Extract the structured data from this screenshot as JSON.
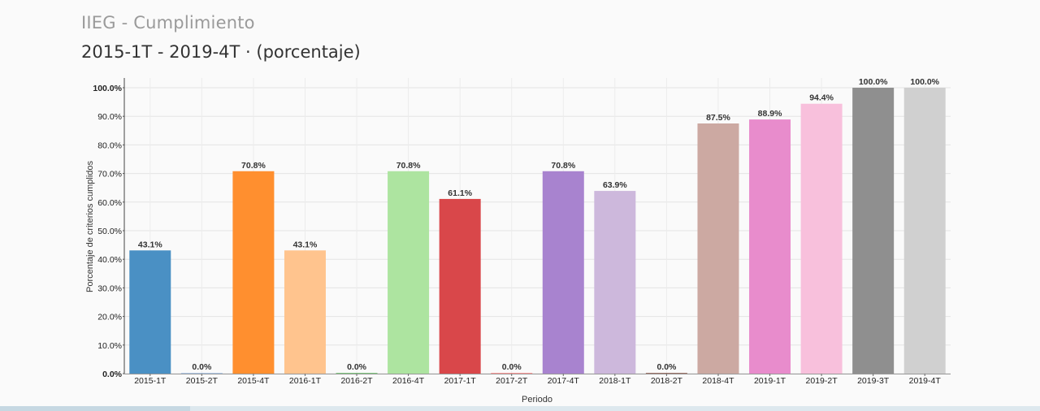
{
  "header": {
    "title": "IIEG - Cumplimiento",
    "subtitle": "2015-1T - 2019-4T · (porcentaje)"
  },
  "chart_data": {
    "type": "bar",
    "title": "IIEG - Cumplimiento",
    "subtitle": "2015-1T - 2019-4T · (porcentaje)",
    "xlabel": "Periodo",
    "ylabel": "Porcentaje de criterios cumplidos",
    "ylim": [
      0,
      100
    ],
    "yticks": [
      0,
      10,
      20,
      30,
      40,
      50,
      60,
      70,
      80,
      90,
      100
    ],
    "ytick_labels": [
      "0.0%",
      "10.0%",
      "20.0%",
      "30.0%",
      "40.0%",
      "50.0%",
      "60.0%",
      "70.0%",
      "80.0%",
      "90.0%",
      "100.0%"
    ],
    "categories": [
      "2015-1T",
      "2015-2T",
      "2015-4T",
      "2016-1T",
      "2016-2T",
      "2016-4T",
      "2017-1T",
      "2017-2T",
      "2017-4T",
      "2018-1T",
      "2018-2T",
      "2018-4T",
      "2019-1T",
      "2019-2T",
      "2019-3T",
      "2019-4T"
    ],
    "values": [
      43.1,
      0.0,
      70.8,
      43.1,
      0.0,
      70.8,
      61.1,
      0.0,
      70.8,
      63.9,
      0.0,
      87.5,
      88.9,
      94.4,
      100.0,
      100.0
    ],
    "value_labels": [
      "43.1%",
      "0.0%",
      "70.8%",
      "43.1%",
      "0.0%",
      "70.8%",
      "61.1%",
      "0.0%",
      "70.8%",
      "63.9%",
      "0.0%",
      "87.5%",
      "88.9%",
      "94.4%",
      "100.0%",
      "100.0%"
    ],
    "colors": [
      "#4a90c4",
      "#aec7e8",
      "#ff8f2f",
      "#ffc48e",
      "#7ec77e",
      "#ade4a0",
      "#d9474a",
      "#ff9896",
      "#a883cf",
      "#cdb8dc",
      "#9e7468",
      "#cca9a2",
      "#e88ccc",
      "#f8c0dc",
      "#8f8f8f",
      "#d0d0d0"
    ],
    "grid": true
  }
}
